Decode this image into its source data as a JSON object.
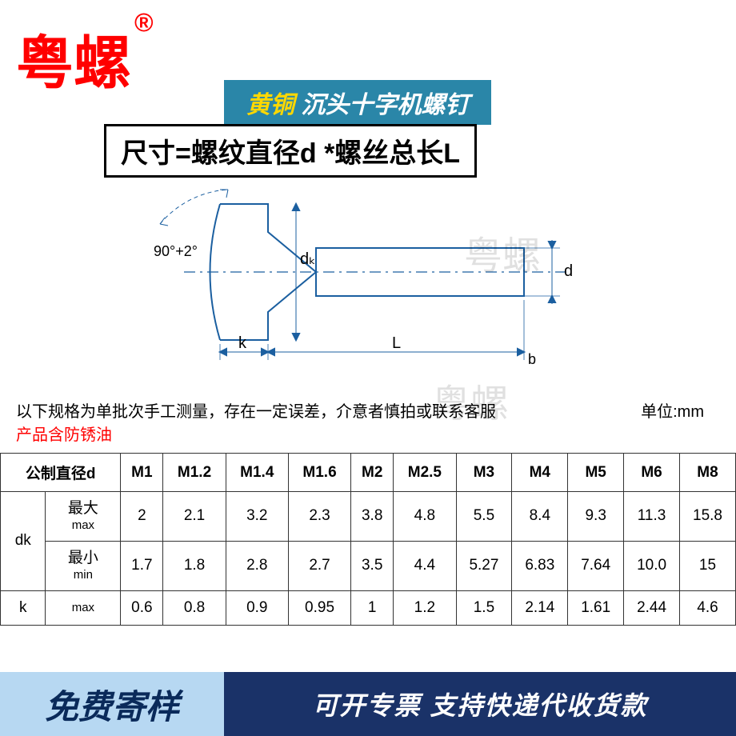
{
  "brand": {
    "name": "粤螺",
    "mark": "®"
  },
  "title": {
    "material": "黄铜",
    "product": "沉头十字机螺钉"
  },
  "size_formula": "尺寸=螺纹直径d *螺丝总长L",
  "diagram": {
    "angle_label": "90°+2°",
    "dk_label": "dₖ",
    "k_label": "k",
    "L_label": "L",
    "d_label": "d",
    "b_label": "b",
    "colors": {
      "line": "#1b5fa0",
      "head_arc": "#1b5fa0"
    }
  },
  "watermark": "粤螺",
  "notes": {
    "line1": "以下规格为单批次手工测量，存在一定误差，介意者慎拍或联系客服",
    "line2": "产品含防锈油",
    "unit": "单位:mm"
  },
  "table": {
    "header_d": "公制直径d",
    "sizes": [
      "M1",
      "M1.2",
      "M1.4",
      "M1.6",
      "M2",
      "M2.5",
      "M3",
      "M4",
      "M5",
      "M6",
      "M8"
    ],
    "rows": [
      {
        "group": "dk",
        "sub_cn": "最大",
        "sub_en": "max",
        "values": [
          "2",
          "2.1",
          "3.2",
          "2.3",
          "3.8",
          "4.8",
          "5.5",
          "8.4",
          "9.3",
          "11.3",
          "15.8"
        ]
      },
      {
        "group": "",
        "sub_cn": "最小",
        "sub_en": "min",
        "values": [
          "1.7",
          "1.8",
          "2.8",
          "2.7",
          "3.5",
          "4.4",
          "5.27",
          "6.83",
          "7.64",
          "10.0",
          "15"
        ]
      },
      {
        "group": "k",
        "sub_cn": "",
        "sub_en": "max",
        "values": [
          "0.6",
          "0.8",
          "0.9",
          "0.95",
          "1",
          "1.2",
          "1.5",
          "2.14",
          "1.61",
          "2.44",
          "4.6"
        ]
      }
    ]
  },
  "footer": {
    "left": "免费寄样",
    "right": "可开专票 支持快递代收货款"
  },
  "colors": {
    "brand_red": "#ff0000",
    "title_bg": "#2a86a8",
    "title_yellow": "#ffd800",
    "footer_left_bg": "#b7d8f2",
    "footer_left_text": "#0a2a5a",
    "footer_right_bg": "#1a3268"
  }
}
